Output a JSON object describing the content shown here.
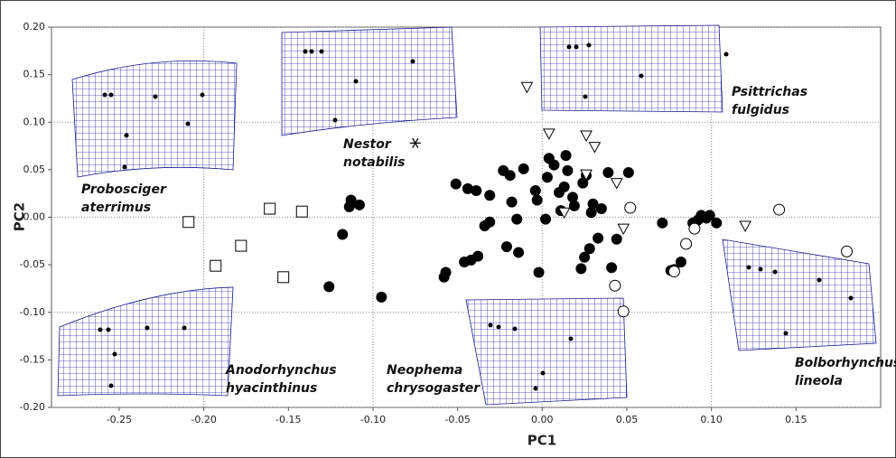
{
  "chart_data": {
    "type": "scatter",
    "x_label": "PC1",
    "y_label": "PC2",
    "xlim": [
      -0.29,
      0.2
    ],
    "ylim": [
      -0.2,
      0.2
    ],
    "xticks": [
      {
        "value": -0.25,
        "label": "-0.25"
      },
      {
        "value": -0.2,
        "label": "-0.20"
      },
      {
        "value": -0.15,
        "label": "-0.15"
      },
      {
        "value": -0.1,
        "label": "-0.10"
      },
      {
        "value": -0.05,
        "label": "-0.05"
      },
      {
        "value": 0,
        "label": "0.00"
      },
      {
        "value": 0.05,
        "label": "0.05"
      },
      {
        "value": 0.1,
        "label": "0.10"
      },
      {
        "value": 0.15,
        "label": "0.15"
      }
    ],
    "yticks": [
      {
        "value": -0.2,
        "label": "-0.20"
      },
      {
        "value": -0.15,
        "label": "-0.15"
      },
      {
        "value": -0.1,
        "label": "-0.10"
      },
      {
        "value": -0.05,
        "label": "-0.05"
      },
      {
        "value": 0,
        "label": "0.00"
      },
      {
        "value": 0.05,
        "label": "0.05"
      },
      {
        "value": 0.1,
        "label": "0.10"
      },
      {
        "value": 0.15,
        "label": "0.15"
      },
      {
        "value": 0.2,
        "label": "0.20"
      }
    ],
    "grid": true,
    "series": [
      {
        "marker": "filled-circle",
        "color": "#000000",
        "x": [
          -0.113,
          -0.114,
          -0.108,
          -0.118,
          -0.126,
          -0.095,
          -0.058,
          -0.057,
          -0.051,
          -0.044,
          -0.046,
          -0.042,
          -0.039,
          -0.038,
          -0.034,
          -0.031,
          -0.031,
          -0.023,
          -0.021,
          -0.019,
          -0.018,
          -0.015,
          -0.014,
          -0.011,
          -0.004,
          -0.003,
          -0.002,
          0.002,
          0.003,
          0.004,
          0.007,
          0.01,
          0.011,
          0.013,
          0.014,
          0.015,
          0.018,
          0.019,
          0.023,
          0.024,
          0.025,
          0.026,
          0.028,
          0.029,
          0.03,
          0.033,
          0.035,
          0.039,
          0.041,
          0.044,
          0.051,
          0.071,
          0.076,
          0.078,
          0.082,
          0.089,
          0.092,
          0.094,
          0.097,
          0.099,
          0.103
        ],
        "y": [
          0.018,
          0.011,
          0.013,
          -0.018,
          -0.073,
          -0.084,
          -0.063,
          -0.058,
          0.035,
          0.03,
          -0.047,
          -0.045,
          0.028,
          -0.041,
          -0.009,
          0.023,
          -0.005,
          0.049,
          -0.031,
          0.044,
          0.016,
          -0.002,
          -0.037,
          0.051,
          0.028,
          0.018,
          -0.058,
          -0.002,
          0.042,
          0.062,
          0.055,
          0.026,
          0.007,
          0.032,
          0.065,
          0.049,
          0.021,
          0.012,
          -0.054,
          0.036,
          -0.042,
          0.044,
          -0.033,
          0.005,
          0.014,
          -0.022,
          0.009,
          0.047,
          -0.053,
          -0.023,
          0.047,
          -0.006,
          -0.056,
          -0.055,
          -0.047,
          -0.006,
          -0.003,
          0.002,
          -0.001,
          0.002,
          -0.006
        ]
      },
      {
        "marker": "open-circle",
        "color": "#000000",
        "x": [
          0.052,
          0.085,
          0.09,
          0.078,
          0.043,
          0.048,
          0.14,
          0.18
        ],
        "y": [
          0.01,
          -0.028,
          -0.012,
          -0.057,
          -0.072,
          -0.099,
          0.008,
          -0.036
        ]
      },
      {
        "marker": "open-triangle",
        "color": "#000000",
        "x": [
          -0.009,
          0.004,
          0.026,
          0.031,
          0.026,
          0.044,
          0.013,
          0.048,
          0.12
        ],
        "y": [
          0.137,
          0.088,
          0.086,
          0.074,
          0.045,
          0.036,
          0.005,
          -0.012,
          -0.009
        ]
      },
      {
        "marker": "open-square",
        "color": "#000000",
        "x": [
          -0.209,
          -0.161,
          -0.142,
          -0.178,
          -0.193,
          -0.153
        ],
        "y": [
          -0.005,
          0.009,
          0.006,
          -0.03,
          -0.051,
          -0.063
        ]
      },
      {
        "marker": "asterisk",
        "color": "#000000",
        "x": [
          -0.075
        ],
        "y": [
          0.078
        ]
      }
    ],
    "annotations": [
      {
        "lines": [
          "Probosciger",
          "aterrimus"
        ]
      },
      {
        "lines": [
          "Nestor",
          "notabilis"
        ]
      },
      {
        "lines": [
          "Psittrichas",
          "fulgidus"
        ]
      },
      {
        "lines": [
          "Anodorhynchus",
          "hyacinthinus"
        ]
      },
      {
        "lines": [
          "Neophema",
          "chrysogaster"
        ]
      },
      {
        "lines": [
          "Bolborhynchus",
          "lineola"
        ]
      }
    ]
  }
}
